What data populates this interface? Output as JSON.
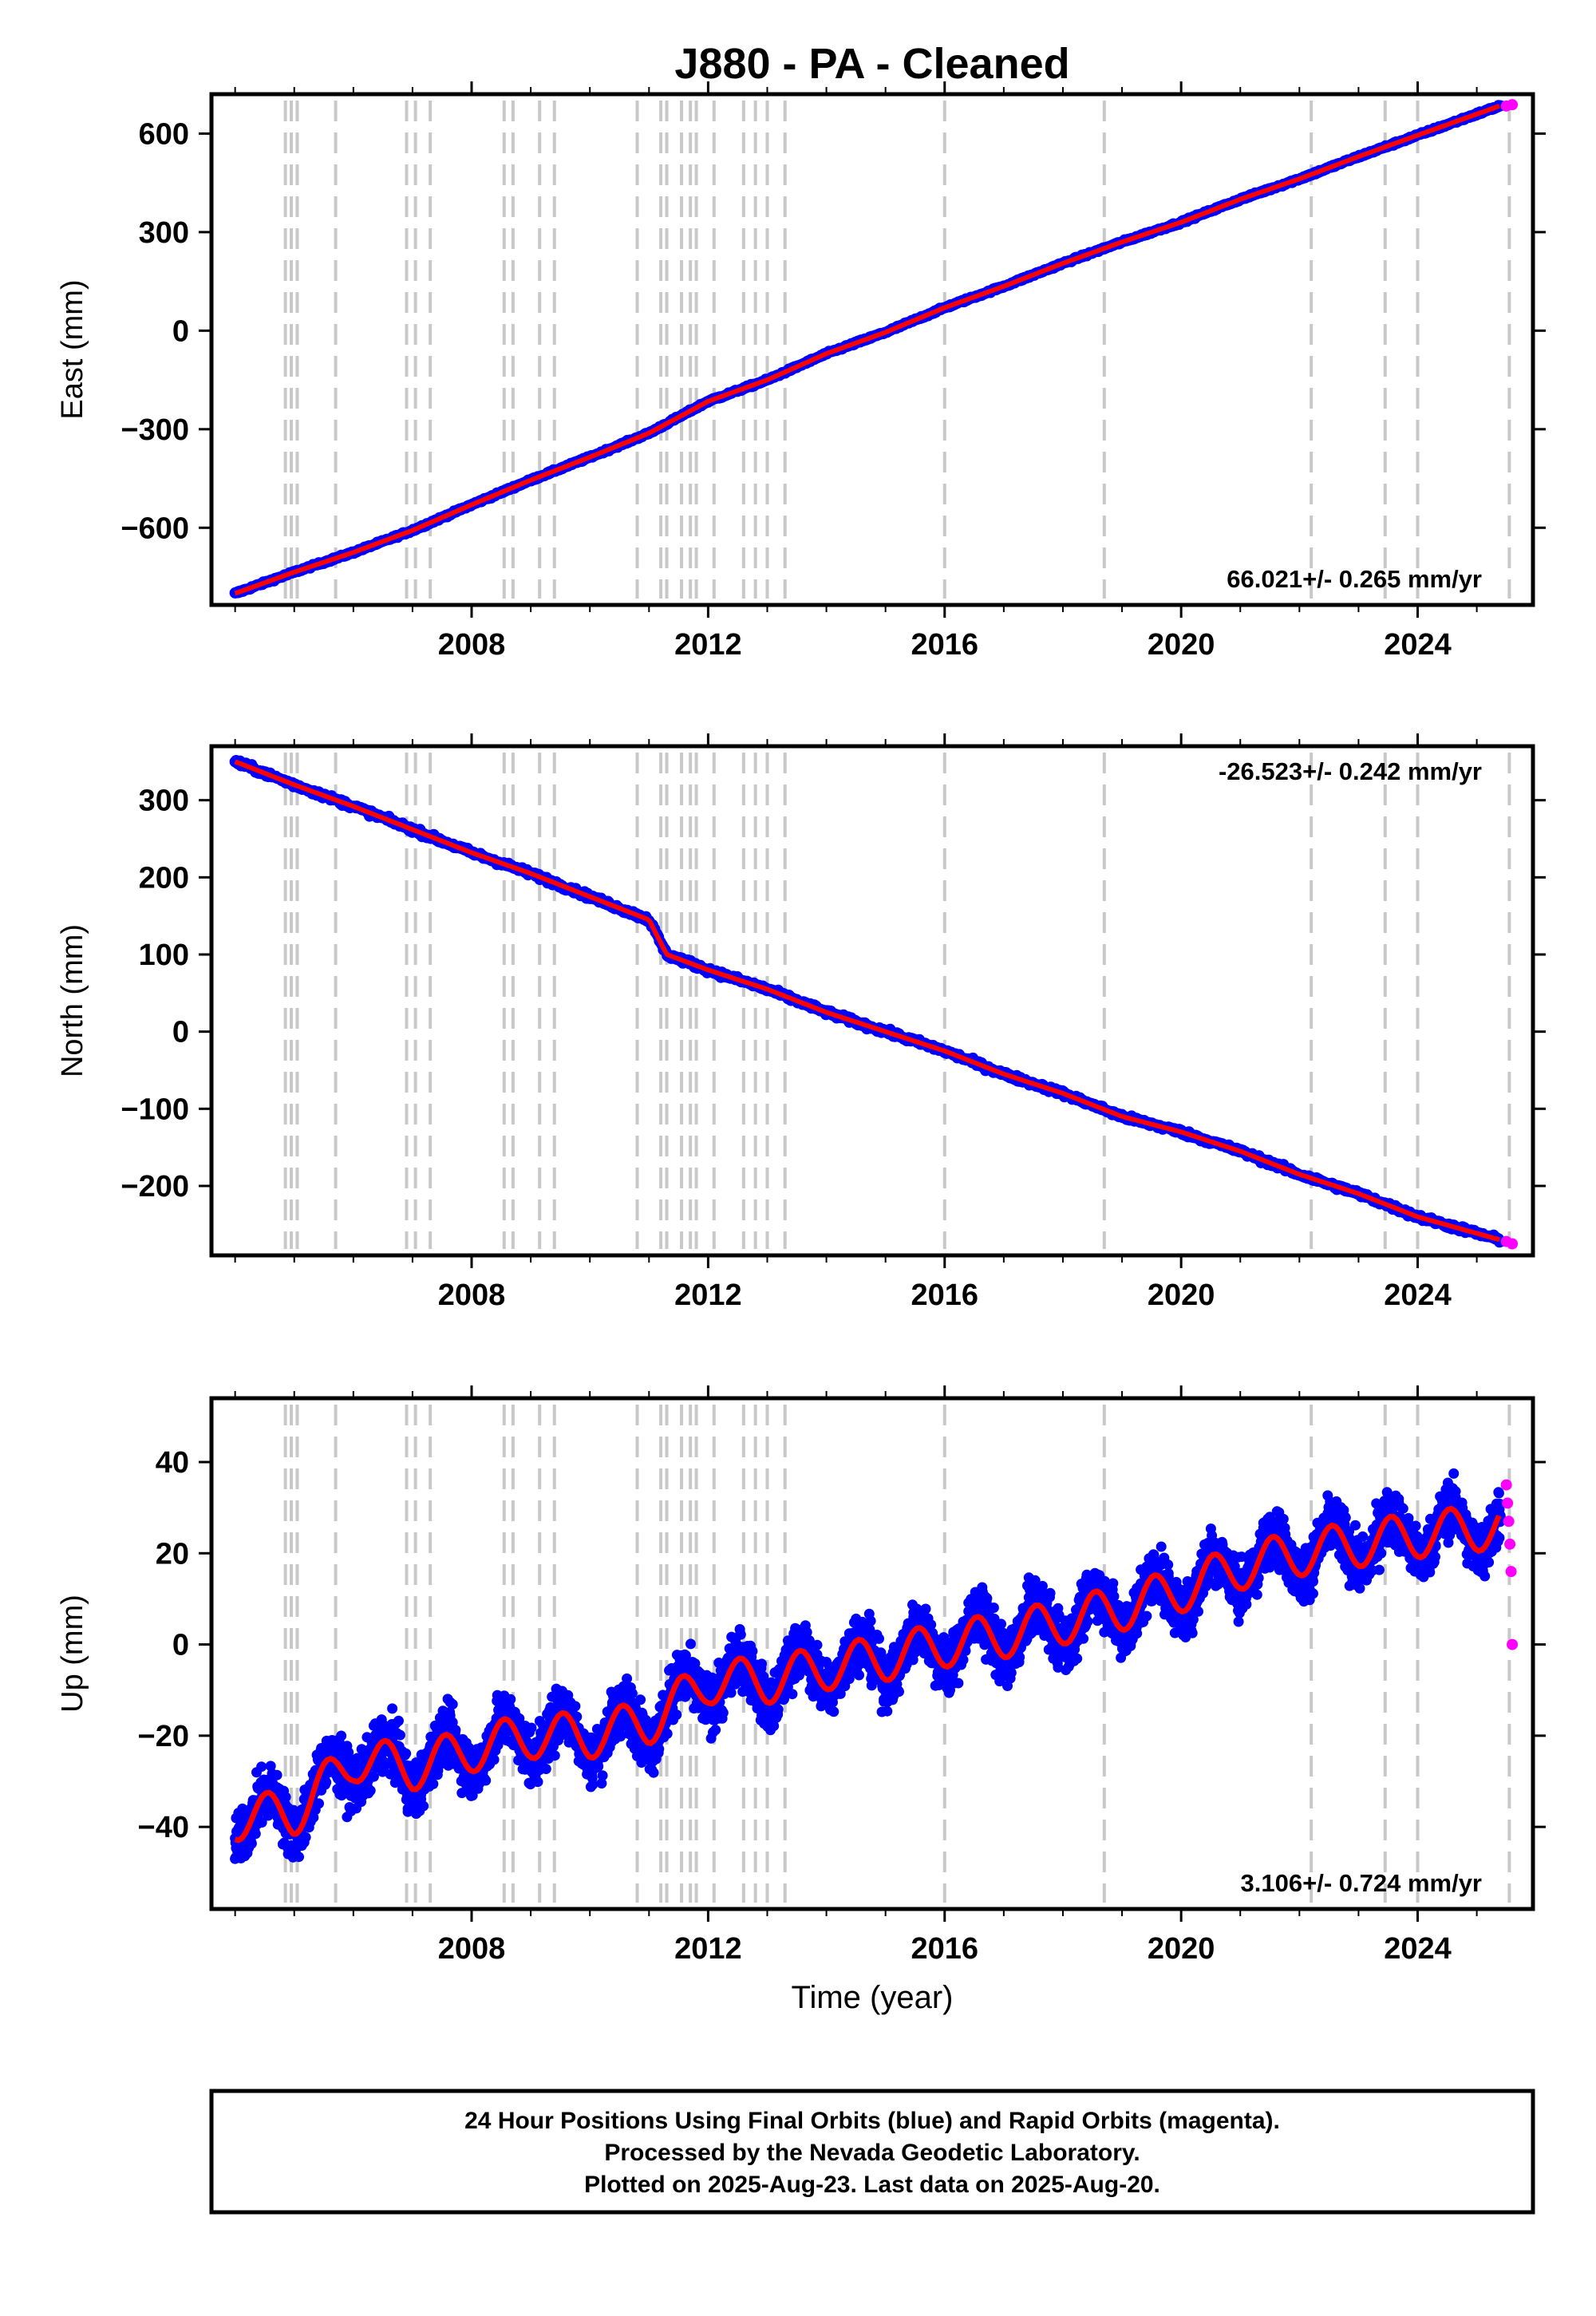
{
  "title": "J880  - PA - Cleaned",
  "xlabel": "Time (year)",
  "footer": {
    "line1": "24 Hour Positions Using Final Orbits (blue) and Rapid Orbits (magenta).",
    "line2": "Processed by the Nevada Geodetic Laboratory.",
    "line3": "Plotted on 2025-Aug-23. Last data on 2025-Aug-20."
  },
  "colors": {
    "final": "#0000ff",
    "rapid": "#ff00ff",
    "model": "#ff0000",
    "event_lines": "#c8c8c8"
  },
  "chart_data": [
    {
      "type": "scatter",
      "component": "East",
      "ylabel": "East (mm)",
      "rate_text": "66.021+/- 0.265 mm/yr",
      "rate_position": "bottom-right",
      "xlim": [
        2003.6,
        2025.95
      ],
      "ylim": [
        -835,
        720
      ],
      "xticks": [
        2008,
        2012,
        2016,
        2020,
        2024
      ],
      "yticks": [
        -600,
        -300,
        0,
        300,
        600
      ],
      "velocity_mm_per_yr": 66.021,
      "series": [
        {
          "name": "final",
          "x": [
            2004.0,
            2005.0,
            2006.0,
            2007.0,
            2008.0,
            2009.0,
            2010.0,
            2011.0,
            2012.0,
            2013.0,
            2014.0,
            2015.0,
            2016.0,
            2017.0,
            2018.0,
            2019.0,
            2020.0,
            2021.0,
            2022.0,
            2023.0,
            2024.0,
            2025.4
          ],
          "values": [
            -800,
            -735,
            -675,
            -608,
            -530,
            -455,
            -385,
            -312,
            -215,
            -150,
            -70,
            -5,
            70,
            135,
            205,
            270,
            330,
            400,
            462,
            530,
            595,
            685
          ]
        },
        {
          "name": "rapid",
          "x": [
            2025.5,
            2025.6
          ],
          "values": [
            684,
            688
          ]
        }
      ]
    },
    {
      "type": "scatter",
      "component": "North",
      "ylabel": "North (mm)",
      "rate_text": "-26.523+/- 0.242 mm/yr",
      "rate_position": "top-right",
      "xlim": [
        2003.6,
        2025.95
      ],
      "ylim": [
        -290,
        370
      ],
      "xticks": [
        2008,
        2012,
        2016,
        2020,
        2024
      ],
      "yticks": [
        -200,
        -100,
        0,
        100,
        200,
        300
      ],
      "velocity_mm_per_yr": -26.523,
      "series": [
        {
          "name": "final",
          "x": [
            2004.0,
            2005.0,
            2006.0,
            2007.0,
            2008.0,
            2009.0,
            2010.0,
            2011.0,
            2011.3,
            2012.0,
            2013.0,
            2014.0,
            2015.0,
            2016.0,
            2017.0,
            2018.0,
            2019.0,
            2020.0,
            2021.0,
            2022.0,
            2023.0,
            2024.0,
            2025.4
          ],
          "values": [
            350,
            320,
            292,
            262,
            232,
            205,
            175,
            145,
            100,
            80,
            55,
            25,
            0,
            -25,
            -55,
            -80,
            -110,
            -130,
            -155,
            -185,
            -210,
            -240,
            -270
          ]
        },
        {
          "name": "rapid",
          "x": [
            2025.5,
            2025.6
          ],
          "values": [
            -272,
            -275
          ]
        }
      ]
    },
    {
      "type": "scatter",
      "component": "Up",
      "ylabel": "Up (mm)",
      "rate_text": "3.106+/- 0.724 mm/yr",
      "rate_position": "bottom-right",
      "xlim": [
        2003.6,
        2025.95
      ],
      "ylim": [
        -58,
        54
      ],
      "xticks": [
        2008,
        2012,
        2016,
        2020,
        2024
      ],
      "yticks": [
        -40,
        -20,
        0,
        20,
        40
      ],
      "velocity_mm_per_yr": 3.106,
      "seasonal_amplitude_mm": 5,
      "series": [
        {
          "name": "final",
          "x": [
            2004.0,
            2005.0,
            2006.0,
            2007.0,
            2008.0,
            2009.0,
            2010.0,
            2011.0,
            2012.0,
            2013.0,
            2014.0,
            2015.0,
            2016.0,
            2017.0,
            2018.0,
            2019.0,
            2020.0,
            2021.0,
            2022.0,
            2023.0,
            2024.0,
            2025.4
          ],
          "values": [
            -38,
            -37,
            -25,
            -27,
            -23,
            -20,
            -20,
            -17,
            -8,
            -8,
            -5,
            -3,
            0,
            2,
            5,
            8,
            12,
            17,
            20,
            22,
            24,
            26
          ]
        },
        {
          "name": "rapid",
          "x": [
            2025.5,
            2025.52,
            2025.54,
            2025.56,
            2025.58,
            2025.6
          ],
          "values": [
            35,
            31,
            27,
            22,
            16,
            0
          ]
        }
      ]
    }
  ],
  "event_lines": [
    2004.85,
    2004.95,
    2005.05,
    2005.7,
    2006.9,
    2007.05,
    2007.3,
    2008.55,
    2008.7,
    2009.15,
    2009.4,
    2010.8,
    2011.2,
    2011.3,
    2011.55,
    2011.7,
    2011.8,
    2012.1,
    2012.6,
    2012.8,
    2013.0,
    2013.3,
    2016.0,
    2018.7,
    2022.2,
    2023.45,
    2024.0,
    2025.55
  ]
}
